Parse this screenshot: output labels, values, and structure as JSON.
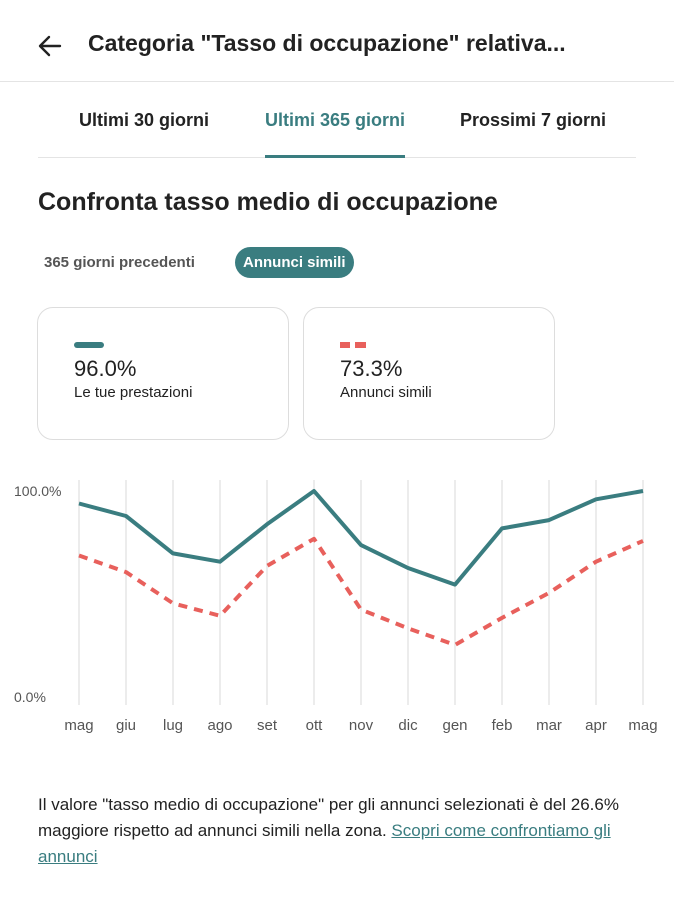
{
  "header": {
    "title": "Categoria \"Tasso di occupazione\" relativa...",
    "back_icon": "arrow-left-icon"
  },
  "tabs": [
    {
      "label": "Ultimi 30 giorni",
      "active": false
    },
    {
      "label": "Ultimi 365 giorni",
      "active": true
    },
    {
      "label": "Prossimi 7 giorni",
      "active": false
    }
  ],
  "section": {
    "title": "Confronta tasso medio di occupazione"
  },
  "filters": [
    {
      "label": "365 giorni precedenti",
      "selected": false
    },
    {
      "label": "Annunci simili",
      "selected": true
    }
  ],
  "cards": [
    {
      "value": "96.0%",
      "label": "Le tue prestazioni",
      "line_style": "solid",
      "color": "#3a7d80"
    },
    {
      "value": "73.3%",
      "label": "Annunci simili",
      "line_style": "dashed",
      "color": "#e8605c"
    }
  ],
  "chart_data": {
    "type": "line",
    "categories": [
      "mag",
      "giu",
      "lug",
      "ago",
      "set",
      "ott",
      "nov",
      "dic",
      "gen",
      "feb",
      "mar",
      "apr",
      "mag"
    ],
    "y_tick_labels": [
      "100.0%",
      "0.0%"
    ],
    "ylim": [
      0,
      100
    ],
    "grid": "vertical",
    "series": [
      {
        "values": [
          94,
          88,
          70,
          66,
          84,
          100,
          74,
          63,
          55,
          82,
          86,
          96,
          100
        ],
        "color": "#3a7d80",
        "style": "solid"
      },
      {
        "values": [
          69,
          61,
          46,
          40,
          64,
          77,
          43,
          34,
          26,
          39,
          51,
          66,
          76
        ],
        "color": "#e8605c",
        "style": "dashed"
      }
    ]
  },
  "footer": {
    "text": "Il valore \"tasso medio di occupazione\" per gli annunci selezionati è del 26.6% maggiore rispetto ad annunci simili nella zona. ",
    "link": "Scopri come confrontiamo gli annunci"
  }
}
